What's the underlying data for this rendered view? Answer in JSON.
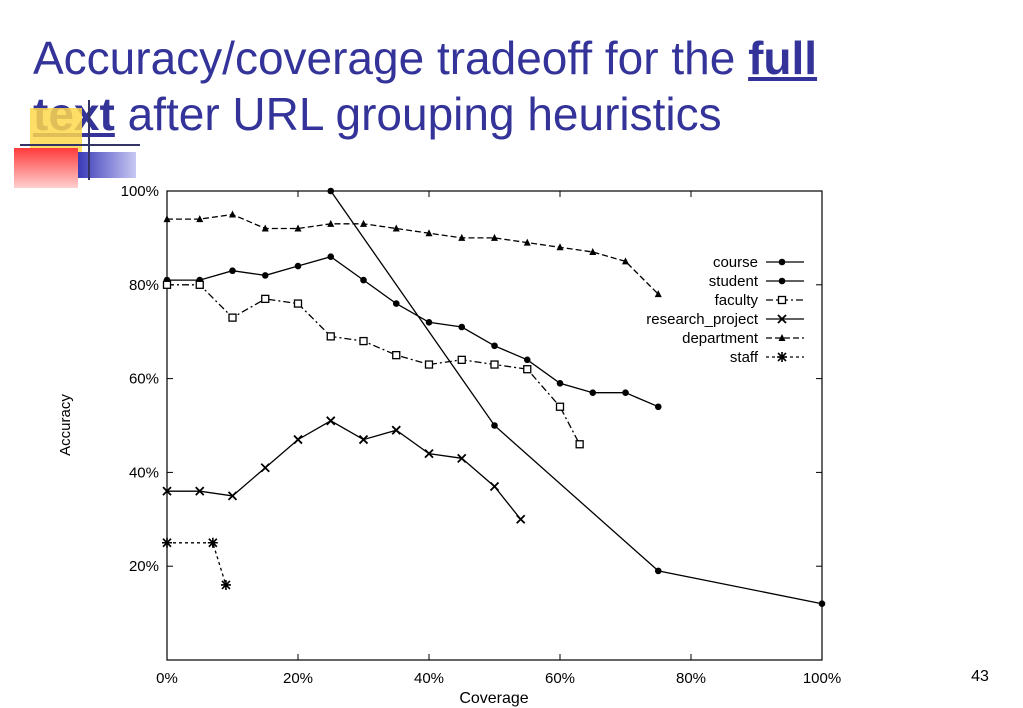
{
  "slide": {
    "title_part1": "Accuracy/coverage tradeoff for the ",
    "title_emph_a": "full ",
    "title_emph_b": "text",
    "title_part2": " after URL grouping heuristics",
    "page_number": "43"
  },
  "colors": {
    "title": "#333399",
    "ink": "#000000"
  },
  "chart_data": {
    "type": "line",
    "xlabel": "Coverage",
    "ylabel": "Accuracy",
    "xlim": [
      0,
      100
    ],
    "ylim": [
      0,
      100
    ],
    "xticks": [
      0,
      20,
      40,
      60,
      80,
      100
    ],
    "yticks": [
      20,
      40,
      60,
      80,
      100
    ],
    "xtick_labels": [
      "0%",
      "20%",
      "40%",
      "60%",
      "80%",
      "100%"
    ],
    "ytick_labels": [
      "20%",
      "40%",
      "60%",
      "80%",
      "100%"
    ],
    "grid": false,
    "legend_position": "top-right",
    "series": [
      {
        "name": "course",
        "marker": "dot",
        "dash": "solid",
        "x": [
          0,
          5,
          10,
          15,
          20,
          25,
          30,
          35,
          40,
          45,
          50,
          55,
          60,
          65,
          70,
          75
        ],
        "y": [
          81,
          81,
          83,
          82,
          84,
          86,
          81,
          76,
          72,
          71,
          67,
          64,
          59,
          57,
          57,
          54
        ]
      },
      {
        "name": "student",
        "marker": "dot",
        "dash": "solid",
        "x": [
          25,
          50,
          75,
          100
        ],
        "y": [
          100,
          50,
          19,
          12
        ]
      },
      {
        "name": "faculty",
        "marker": "square",
        "dash": "dashdot",
        "x": [
          0,
          5,
          10,
          15,
          20,
          25,
          30,
          35,
          40,
          45,
          50,
          55,
          60,
          63
        ],
        "y": [
          80,
          80,
          73,
          77,
          76,
          69,
          68,
          65,
          63,
          64,
          63,
          62,
          54,
          46
        ]
      },
      {
        "name": "research_project",
        "marker": "x",
        "dash": "solid",
        "x": [
          0,
          5,
          10,
          15,
          20,
          25,
          30,
          35,
          40,
          45,
          50,
          54
        ],
        "y": [
          36,
          36,
          35,
          41,
          47,
          51,
          47,
          49,
          44,
          43,
          37,
          30
        ]
      },
      {
        "name": "department",
        "marker": "tri",
        "dash": "dashed",
        "x": [
          0,
          5,
          10,
          15,
          20,
          25,
          30,
          35,
          40,
          45,
          50,
          55,
          60,
          65,
          70,
          75
        ],
        "y": [
          94,
          94,
          95,
          92,
          92,
          93,
          93,
          92,
          91,
          90,
          90,
          89,
          88,
          87,
          85,
          78
        ]
      },
      {
        "name": "staff",
        "marker": "star",
        "dash": "dotted",
        "x": [
          0,
          7,
          9
        ],
        "y": [
          25,
          25,
          16
        ]
      }
    ]
  }
}
